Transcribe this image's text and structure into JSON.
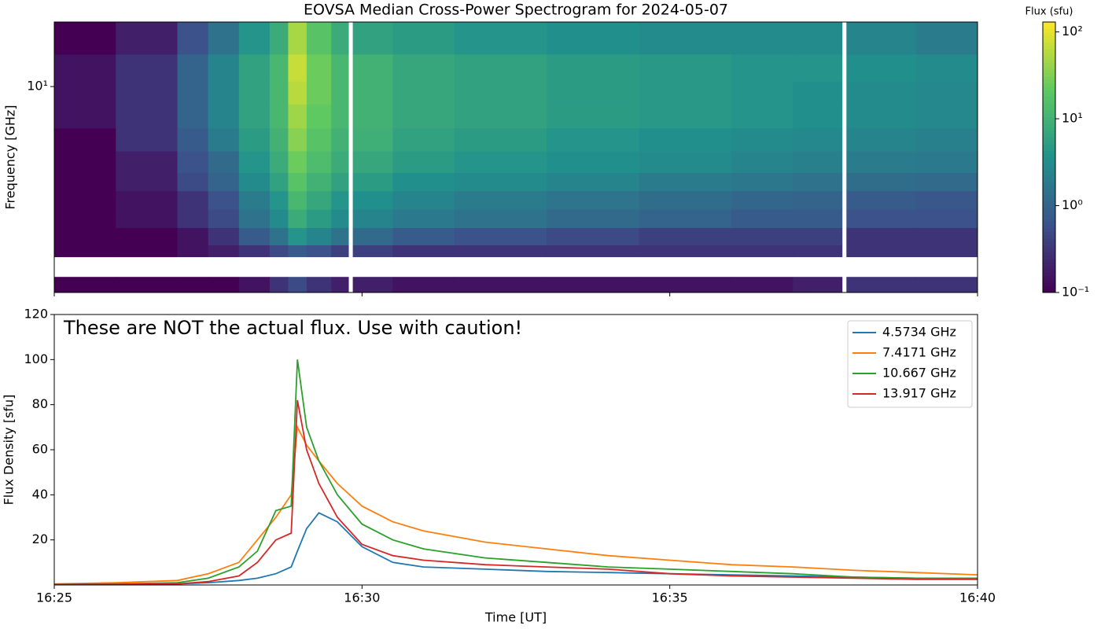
{
  "chart_data": [
    {
      "type": "heatmap",
      "title": "EOVSA Median Cross-Power Spectrogram for 2024-05-07",
      "ylabel": "Frequency [GHz]",
      "yscale": "log",
      "xlim": [
        985,
        1000
      ],
      "xticks": [
        985,
        990,
        995,
        1000
      ],
      "ylim": [
        1.48,
        18.2
      ],
      "yticks": [
        {
          "value": 10,
          "label": "10¹"
        }
      ],
      "x_bins": [
        985,
        986,
        987,
        987.5,
        988,
        988.5,
        988.8,
        989.1,
        989.5,
        989.78,
        989.85,
        990.5,
        991.5,
        993,
        994.5,
        996,
        997,
        997.8,
        997.87,
        999,
        1000
      ],
      "y_bins": [
        1.48,
        1.71,
        2.06,
        2.3,
        2.7,
        3.2,
        3.8,
        4.5,
        5.5,
        6.8,
        8.5,
        10.5,
        13.5,
        18.2
      ],
      "values": [
        [
          0.1,
          0.1,
          0.1,
          0.1,
          0.15,
          0.3,
          0.5,
          0.3,
          0.2,
          null,
          0.2,
          0.15,
          0.15,
          0.15,
          0.15,
          0.15,
          0.2,
          null,
          0.3,
          0.3
        ],
        [
          null,
          null,
          null,
          null,
          null,
          null,
          null,
          null,
          null,
          null,
          null,
          null,
          null,
          null,
          null,
          null,
          null,
          null,
          null,
          null
        ],
        [
          0.1,
          0.1,
          0.15,
          0.2,
          0.3,
          0.5,
          0.8,
          0.6,
          0.4,
          null,
          0.4,
          0.3,
          0.3,
          0.3,
          0.3,
          0.3,
          0.3,
          null,
          0.3,
          0.3
        ],
        [
          0.1,
          0.1,
          0.15,
          0.3,
          0.8,
          1.5,
          4,
          2.5,
          1.5,
          null,
          1.2,
          0.8,
          0.6,
          0.5,
          0.4,
          0.4,
          0.4,
          null,
          0.3,
          0.3
        ],
        [
          0.1,
          0.15,
          0.3,
          0.5,
          1.5,
          3,
          8,
          5,
          3,
          null,
          2.5,
          1.8,
          1.5,
          1.2,
          1,
          0.8,
          0.8,
          null,
          0.6,
          0.6
        ],
        [
          0.1,
          0.15,
          0.3,
          0.6,
          2,
          4,
          12,
          7,
          4,
          null,
          3.5,
          2.5,
          2,
          1.6,
          1.3,
          1.1,
          1,
          null,
          0.8,
          0.7
        ],
        [
          0.1,
          0.2,
          0.5,
          1,
          3,
          6,
          18,
          10,
          6,
          null,
          5,
          3.5,
          3,
          2.5,
          2,
          1.7,
          1.5,
          null,
          1.3,
          1.2
        ],
        [
          0.1,
          0.2,
          0.6,
          1.2,
          4,
          8,
          25,
          14,
          8,
          null,
          7,
          5,
          4,
          3.5,
          3,
          2.5,
          2.2,
          null,
          2,
          1.8
        ],
        [
          0.1,
          0.3,
          0.8,
          2,
          5,
          10,
          35,
          18,
          10,
          null,
          9,
          6,
          5,
          4,
          3.5,
          3,
          2.8,
          null,
          2.5,
          2.2
        ],
        [
          0.15,
          0.3,
          1,
          2.5,
          6,
          12,
          45,
          22,
          12,
          null,
          10,
          7,
          6,
          5,
          4.5,
          4,
          3.5,
          null,
          3,
          2.8
        ],
        [
          0.15,
          0.3,
          1,
          2.5,
          6,
          12,
          60,
          25,
          12,
          null,
          10,
          7,
          6,
          5,
          4.5,
          4,
          3.5,
          null,
          3,
          2.8
        ],
        [
          0.15,
          0.3,
          1,
          2.5,
          6,
          12,
          70,
          25,
          12,
          null,
          10,
          7,
          6,
          5,
          4.5,
          4,
          4,
          null,
          3.5,
          3
        ],
        [
          0.1,
          0.2,
          0.6,
          1.5,
          4,
          8,
          50,
          18,
          8,
          null,
          6,
          5,
          4,
          3.5,
          3,
          3,
          3,
          null,
          2.5,
          2
        ]
      ],
      "colorbar": {
        "label": "Flux (sfu)",
        "scale": "log",
        "colormap": "viridis",
        "lim": [
          0.1,
          130
        ],
        "ticks": [
          {
            "value": 0.1,
            "label": "10⁻¹"
          },
          {
            "value": 1,
            "label": "10⁰"
          },
          {
            "value": 10,
            "label": "10¹"
          },
          {
            "value": 100,
            "label": "10²"
          }
        ]
      }
    },
    {
      "type": "line",
      "annotation": "These are NOT the actual flux. Use with caution!",
      "xlabel": "Time [UT]",
      "ylabel": "Flux Density [sfu]",
      "xlim": [
        985,
        1000
      ],
      "xticks": [
        {
          "value": 985,
          "label": "16:25"
        },
        {
          "value": 990,
          "label": "16:30"
        },
        {
          "value": 995,
          "label": "16:35"
        },
        {
          "value": 1000,
          "label": "16:40"
        }
      ],
      "ylim": [
        0,
        120
      ],
      "yticks": [
        20,
        40,
        60,
        80,
        100,
        120
      ],
      "legend": "upper right",
      "x": [
        985,
        986,
        987,
        987.5,
        988,
        988.3,
        988.6,
        988.85,
        988.95,
        989.1,
        989.3,
        989.6,
        990,
        990.5,
        991,
        992,
        993,
        994,
        995,
        996,
        997,
        998,
        999,
        1000
      ],
      "series": [
        {
          "name": "4.5734 GHz",
          "color": "#1f77b4",
          "values": [
            0.2,
            0.3,
            0.5,
            1,
            2,
            3,
            5,
            8,
            15,
            25,
            32,
            28,
            17,
            10,
            8,
            7,
            6,
            5.5,
            5,
            4.5,
            4,
            3.5,
            3,
            3
          ]
        },
        {
          "name": "7.4171 GHz",
          "color": "#ff7f0e",
          "values": [
            0.5,
            1,
            2,
            5,
            10,
            20,
            30,
            40,
            70,
            62,
            55,
            45,
            35,
            28,
            24,
            19,
            16,
            13,
            11,
            9,
            8,
            6.5,
            5.5,
            4.5
          ]
        },
        {
          "name": "10.667 GHz",
          "color": "#2ca02c",
          "values": [
            0.3,
            0.5,
            1,
            3,
            8,
            15,
            33,
            35,
            100,
            70,
            55,
            40,
            27,
            20,
            16,
            12,
            10,
            8,
            7,
            6,
            5,
            3.5,
            3,
            3
          ]
        },
        {
          "name": "13.917 GHz",
          "color": "#d62728",
          "values": [
            0.2,
            0.3,
            0.5,
            1.5,
            4,
            10,
            20,
            23,
            82,
            60,
            45,
            30,
            18,
            13,
            11,
            9,
            8,
            7,
            5,
            4,
            3.5,
            3,
            2.5,
            2.5
          ]
        }
      ]
    }
  ]
}
